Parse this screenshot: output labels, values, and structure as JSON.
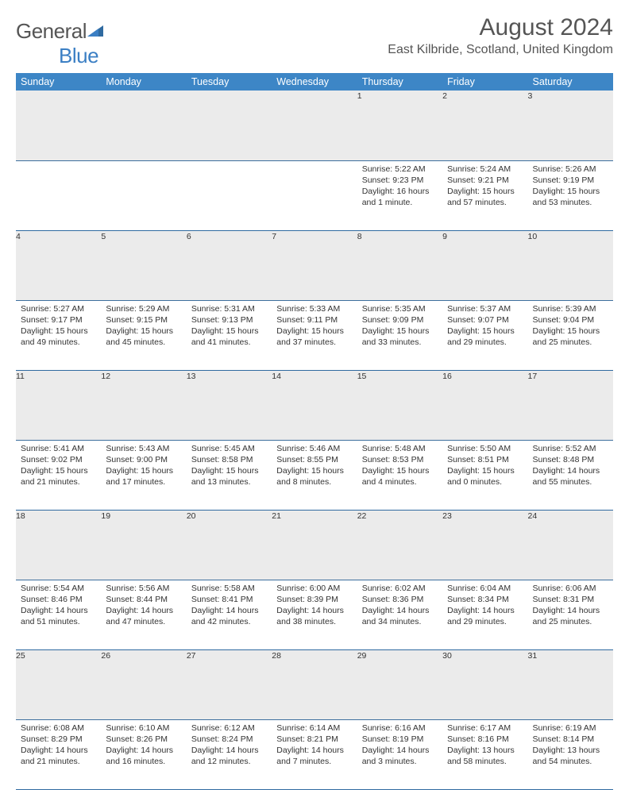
{
  "brand": {
    "part1": "General",
    "part2": "Blue"
  },
  "title": "August 2024",
  "location": "East Kilbride, Scotland, United Kingdom",
  "colors": {
    "header_bg": "#3d86c6",
    "header_text": "#ffffff",
    "daynum_bg": "#ebebeb",
    "rule": "#2f6aa0",
    "brand_blue": "#3b7fc4",
    "text": "#333333",
    "title_text": "#555555"
  },
  "typography": {
    "title_fontsize": 30,
    "location_fontsize": 16,
    "header_fontsize": 12.5,
    "daynum_fontsize": 11.5,
    "body_fontsize": 10.5
  },
  "columns": [
    "Sunday",
    "Monday",
    "Tuesday",
    "Wednesday",
    "Thursday",
    "Friday",
    "Saturday"
  ],
  "weeks": [
    [
      null,
      null,
      null,
      null,
      {
        "n": "1",
        "sr": "Sunrise: 5:22 AM",
        "ss": "Sunset: 9:23 PM",
        "dl": "Daylight: 16 hours and 1 minute."
      },
      {
        "n": "2",
        "sr": "Sunrise: 5:24 AM",
        "ss": "Sunset: 9:21 PM",
        "dl": "Daylight: 15 hours and 57 minutes."
      },
      {
        "n": "3",
        "sr": "Sunrise: 5:26 AM",
        "ss": "Sunset: 9:19 PM",
        "dl": "Daylight: 15 hours and 53 minutes."
      }
    ],
    [
      {
        "n": "4",
        "sr": "Sunrise: 5:27 AM",
        "ss": "Sunset: 9:17 PM",
        "dl": "Daylight: 15 hours and 49 minutes."
      },
      {
        "n": "5",
        "sr": "Sunrise: 5:29 AM",
        "ss": "Sunset: 9:15 PM",
        "dl": "Daylight: 15 hours and 45 minutes."
      },
      {
        "n": "6",
        "sr": "Sunrise: 5:31 AM",
        "ss": "Sunset: 9:13 PM",
        "dl": "Daylight: 15 hours and 41 minutes."
      },
      {
        "n": "7",
        "sr": "Sunrise: 5:33 AM",
        "ss": "Sunset: 9:11 PM",
        "dl": "Daylight: 15 hours and 37 minutes."
      },
      {
        "n": "8",
        "sr": "Sunrise: 5:35 AM",
        "ss": "Sunset: 9:09 PM",
        "dl": "Daylight: 15 hours and 33 minutes."
      },
      {
        "n": "9",
        "sr": "Sunrise: 5:37 AM",
        "ss": "Sunset: 9:07 PM",
        "dl": "Daylight: 15 hours and 29 minutes."
      },
      {
        "n": "10",
        "sr": "Sunrise: 5:39 AM",
        "ss": "Sunset: 9:04 PM",
        "dl": "Daylight: 15 hours and 25 minutes."
      }
    ],
    [
      {
        "n": "11",
        "sr": "Sunrise: 5:41 AM",
        "ss": "Sunset: 9:02 PM",
        "dl": "Daylight: 15 hours and 21 minutes."
      },
      {
        "n": "12",
        "sr": "Sunrise: 5:43 AM",
        "ss": "Sunset: 9:00 PM",
        "dl": "Daylight: 15 hours and 17 minutes."
      },
      {
        "n": "13",
        "sr": "Sunrise: 5:45 AM",
        "ss": "Sunset: 8:58 PM",
        "dl": "Daylight: 15 hours and 13 minutes."
      },
      {
        "n": "14",
        "sr": "Sunrise: 5:46 AM",
        "ss": "Sunset: 8:55 PM",
        "dl": "Daylight: 15 hours and 8 minutes."
      },
      {
        "n": "15",
        "sr": "Sunrise: 5:48 AM",
        "ss": "Sunset: 8:53 PM",
        "dl": "Daylight: 15 hours and 4 minutes."
      },
      {
        "n": "16",
        "sr": "Sunrise: 5:50 AM",
        "ss": "Sunset: 8:51 PM",
        "dl": "Daylight: 15 hours and 0 minutes."
      },
      {
        "n": "17",
        "sr": "Sunrise: 5:52 AM",
        "ss": "Sunset: 8:48 PM",
        "dl": "Daylight: 14 hours and 55 minutes."
      }
    ],
    [
      {
        "n": "18",
        "sr": "Sunrise: 5:54 AM",
        "ss": "Sunset: 8:46 PM",
        "dl": "Daylight: 14 hours and 51 minutes."
      },
      {
        "n": "19",
        "sr": "Sunrise: 5:56 AM",
        "ss": "Sunset: 8:44 PM",
        "dl": "Daylight: 14 hours and 47 minutes."
      },
      {
        "n": "20",
        "sr": "Sunrise: 5:58 AM",
        "ss": "Sunset: 8:41 PM",
        "dl": "Daylight: 14 hours and 42 minutes."
      },
      {
        "n": "21",
        "sr": "Sunrise: 6:00 AM",
        "ss": "Sunset: 8:39 PM",
        "dl": "Daylight: 14 hours and 38 minutes."
      },
      {
        "n": "22",
        "sr": "Sunrise: 6:02 AM",
        "ss": "Sunset: 8:36 PM",
        "dl": "Daylight: 14 hours and 34 minutes."
      },
      {
        "n": "23",
        "sr": "Sunrise: 6:04 AM",
        "ss": "Sunset: 8:34 PM",
        "dl": "Daylight: 14 hours and 29 minutes."
      },
      {
        "n": "24",
        "sr": "Sunrise: 6:06 AM",
        "ss": "Sunset: 8:31 PM",
        "dl": "Daylight: 14 hours and 25 minutes."
      }
    ],
    [
      {
        "n": "25",
        "sr": "Sunrise: 6:08 AM",
        "ss": "Sunset: 8:29 PM",
        "dl": "Daylight: 14 hours and 21 minutes."
      },
      {
        "n": "26",
        "sr": "Sunrise: 6:10 AM",
        "ss": "Sunset: 8:26 PM",
        "dl": "Daylight: 14 hours and 16 minutes."
      },
      {
        "n": "27",
        "sr": "Sunrise: 6:12 AM",
        "ss": "Sunset: 8:24 PM",
        "dl": "Daylight: 14 hours and 12 minutes."
      },
      {
        "n": "28",
        "sr": "Sunrise: 6:14 AM",
        "ss": "Sunset: 8:21 PM",
        "dl": "Daylight: 14 hours and 7 minutes."
      },
      {
        "n": "29",
        "sr": "Sunrise: 6:16 AM",
        "ss": "Sunset: 8:19 PM",
        "dl": "Daylight: 14 hours and 3 minutes."
      },
      {
        "n": "30",
        "sr": "Sunrise: 6:17 AM",
        "ss": "Sunset: 8:16 PM",
        "dl": "Daylight: 13 hours and 58 minutes."
      },
      {
        "n": "31",
        "sr": "Sunrise: 6:19 AM",
        "ss": "Sunset: 8:14 PM",
        "dl": "Daylight: 13 hours and 54 minutes."
      }
    ]
  ]
}
